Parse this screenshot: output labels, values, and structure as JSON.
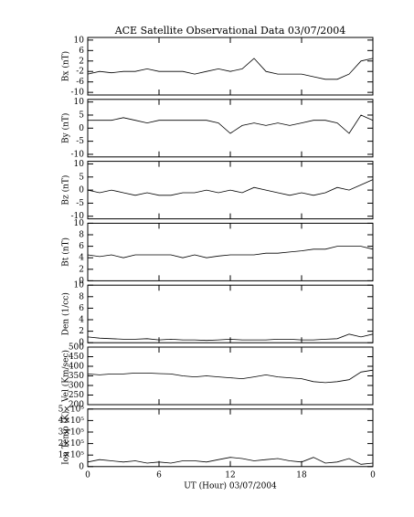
{
  "chart_data": [
    {
      "type": "line",
      "title": "ACE Satellite Observational Data   03/07/2004",
      "ylabel": "Bx (nT)",
      "color": "#000000",
      "x": [
        0,
        1,
        2,
        3,
        4,
        5,
        6,
        7,
        8,
        9,
        10,
        11,
        12,
        13,
        14,
        15,
        16,
        17,
        18,
        19,
        20,
        21,
        22,
        23,
        24
      ],
      "values": [
        -3,
        -2,
        -2.5,
        -2,
        -2,
        -1,
        -2,
        -2,
        -2,
        -3,
        -2,
        -1,
        -2,
        -1,
        3,
        -2,
        -3,
        -3,
        -3,
        -4,
        -5,
        -5,
        -3,
        2,
        3
      ],
      "xlim": [
        0,
        24
      ],
      "ylim": [
        -11,
        11
      ],
      "yticks": [
        10,
        6,
        2,
        -2,
        -6,
        -10
      ]
    },
    {
      "type": "line",
      "ylabel": "By (nT)",
      "color": "#000000",
      "x": [
        0,
        1,
        2,
        3,
        4,
        5,
        6,
        7,
        8,
        9,
        10,
        11,
        12,
        13,
        14,
        15,
        16,
        17,
        18,
        19,
        20,
        21,
        22,
        23,
        24
      ],
      "values": [
        3,
        3,
        3,
        4,
        3,
        2,
        3,
        3,
        3,
        3,
        3,
        2,
        -2,
        1,
        2,
        1,
        2,
        1,
        2,
        3,
        3,
        2,
        -2,
        5,
        3
      ],
      "xlim": [
        0,
        24
      ],
      "ylim": [
        -11,
        11
      ],
      "yticks": [
        10,
        5,
        0,
        -5,
        -10
      ]
    },
    {
      "type": "line",
      "ylabel": "Bz (nT)",
      "color": "#000000",
      "x": [
        0,
        1,
        2,
        3,
        4,
        5,
        6,
        7,
        8,
        9,
        10,
        11,
        12,
        13,
        14,
        15,
        16,
        17,
        18,
        19,
        20,
        21,
        22,
        23,
        24
      ],
      "values": [
        0,
        -1,
        0,
        -1,
        -2,
        -1,
        -2,
        -2,
        -1,
        -1,
        0,
        -1,
        0,
        -1,
        1,
        0,
        -1,
        -2,
        -1,
        -2,
        -1,
        1,
        0,
        2,
        4
      ],
      "xlim": [
        0,
        24
      ],
      "ylim": [
        -11,
        11
      ],
      "yticks": [
        10,
        5,
        0,
        -5,
        -10
      ]
    },
    {
      "type": "line",
      "ylabel": "Bt (nT)",
      "color": "#000000",
      "x": [
        0,
        1,
        2,
        3,
        4,
        5,
        6,
        7,
        8,
        9,
        10,
        11,
        12,
        13,
        14,
        15,
        16,
        17,
        18,
        19,
        20,
        21,
        22,
        23,
        24
      ],
      "values": [
        4.5,
        4.2,
        4.5,
        4,
        4.5,
        4.5,
        4.5,
        4.5,
        4,
        4.5,
        4,
        4.3,
        4.5,
        4.5,
        4.5,
        4.8,
        4.8,
        5,
        5.2,
        5.5,
        5.5,
        6,
        6,
        6,
        5.5
      ],
      "xlim": [
        0,
        24
      ],
      "ylim": [
        0,
        10
      ],
      "yticks": [
        10,
        8,
        6,
        4,
        2,
        0
      ]
    },
    {
      "type": "line",
      "ylabel": "Den (1/cc)",
      "color": "#000000",
      "x": [
        0,
        1,
        2,
        3,
        4,
        5,
        6,
        7,
        8,
        9,
        10,
        11,
        12,
        13,
        14,
        15,
        16,
        17,
        18,
        19,
        20,
        21,
        22,
        23,
        24
      ],
      "values": [
        1,
        0.8,
        0.7,
        0.6,
        0.6,
        0.7,
        0.5,
        0.6,
        0.5,
        0.5,
        0.4,
        0.5,
        0.6,
        0.5,
        0.5,
        0.5,
        0.6,
        0.6,
        0.5,
        0.5,
        0.6,
        0.7,
        1.5,
        1,
        1.5
      ],
      "xlim": [
        0,
        24
      ],
      "ylim": [
        0,
        10
      ],
      "yticks": [
        10,
        8,
        6,
        4,
        2,
        0
      ]
    },
    {
      "type": "line",
      "ylabel": "Vel (Km/sec)",
      "color": "#000000",
      "x": [
        0,
        1,
        2,
        3,
        4,
        5,
        6,
        7,
        8,
        9,
        10,
        11,
        12,
        13,
        14,
        15,
        16,
        17,
        18,
        19,
        20,
        21,
        22,
        23,
        24
      ],
      "values": [
        360,
        355,
        360,
        360,
        365,
        365,
        362,
        360,
        350,
        345,
        350,
        345,
        340,
        335,
        345,
        355,
        345,
        340,
        335,
        320,
        315,
        320,
        330,
        370,
        380
      ],
      "xlim": [
        0,
        24
      ],
      "ylim": [
        200,
        500
      ],
      "yticks": [
        500,
        450,
        400,
        350,
        300,
        250,
        200
      ]
    },
    {
      "type": "line",
      "ylabel": "Ion Temp (K)",
      "xlabel": "UT (Hour)  03/07/2004",
      "color": "#000000",
      "x": [
        0,
        1,
        2,
        3,
        4,
        5,
        6,
        7,
        8,
        9,
        10,
        11,
        12,
        13,
        14,
        15,
        16,
        17,
        18,
        19,
        20,
        21,
        22,
        23,
        24
      ],
      "values": [
        40000,
        60000,
        50000,
        40000,
        50000,
        30000,
        40000,
        30000,
        50000,
        50000,
        40000,
        60000,
        80000,
        70000,
        50000,
        60000,
        70000,
        50000,
        40000,
        80000,
        30000,
        40000,
        70000,
        20000,
        30000
      ],
      "xlim": [
        0,
        24
      ],
      "xticks": [
        0,
        6,
        12,
        18,
        {
          "value": 24,
          "label": "0"
        }
      ],
      "ylim": [
        0,
        500000
      ],
      "yticks": [
        {
          "value": 500000,
          "label": "5×10⁵"
        },
        {
          "value": 400000,
          "label": "4×10⁵"
        },
        {
          "value": 300000,
          "label": "3×10⁵"
        },
        {
          "value": 200000,
          "label": "2×10⁵"
        },
        {
          "value": 100000,
          "label": "1×10⁵"
        },
        0
      ]
    }
  ]
}
